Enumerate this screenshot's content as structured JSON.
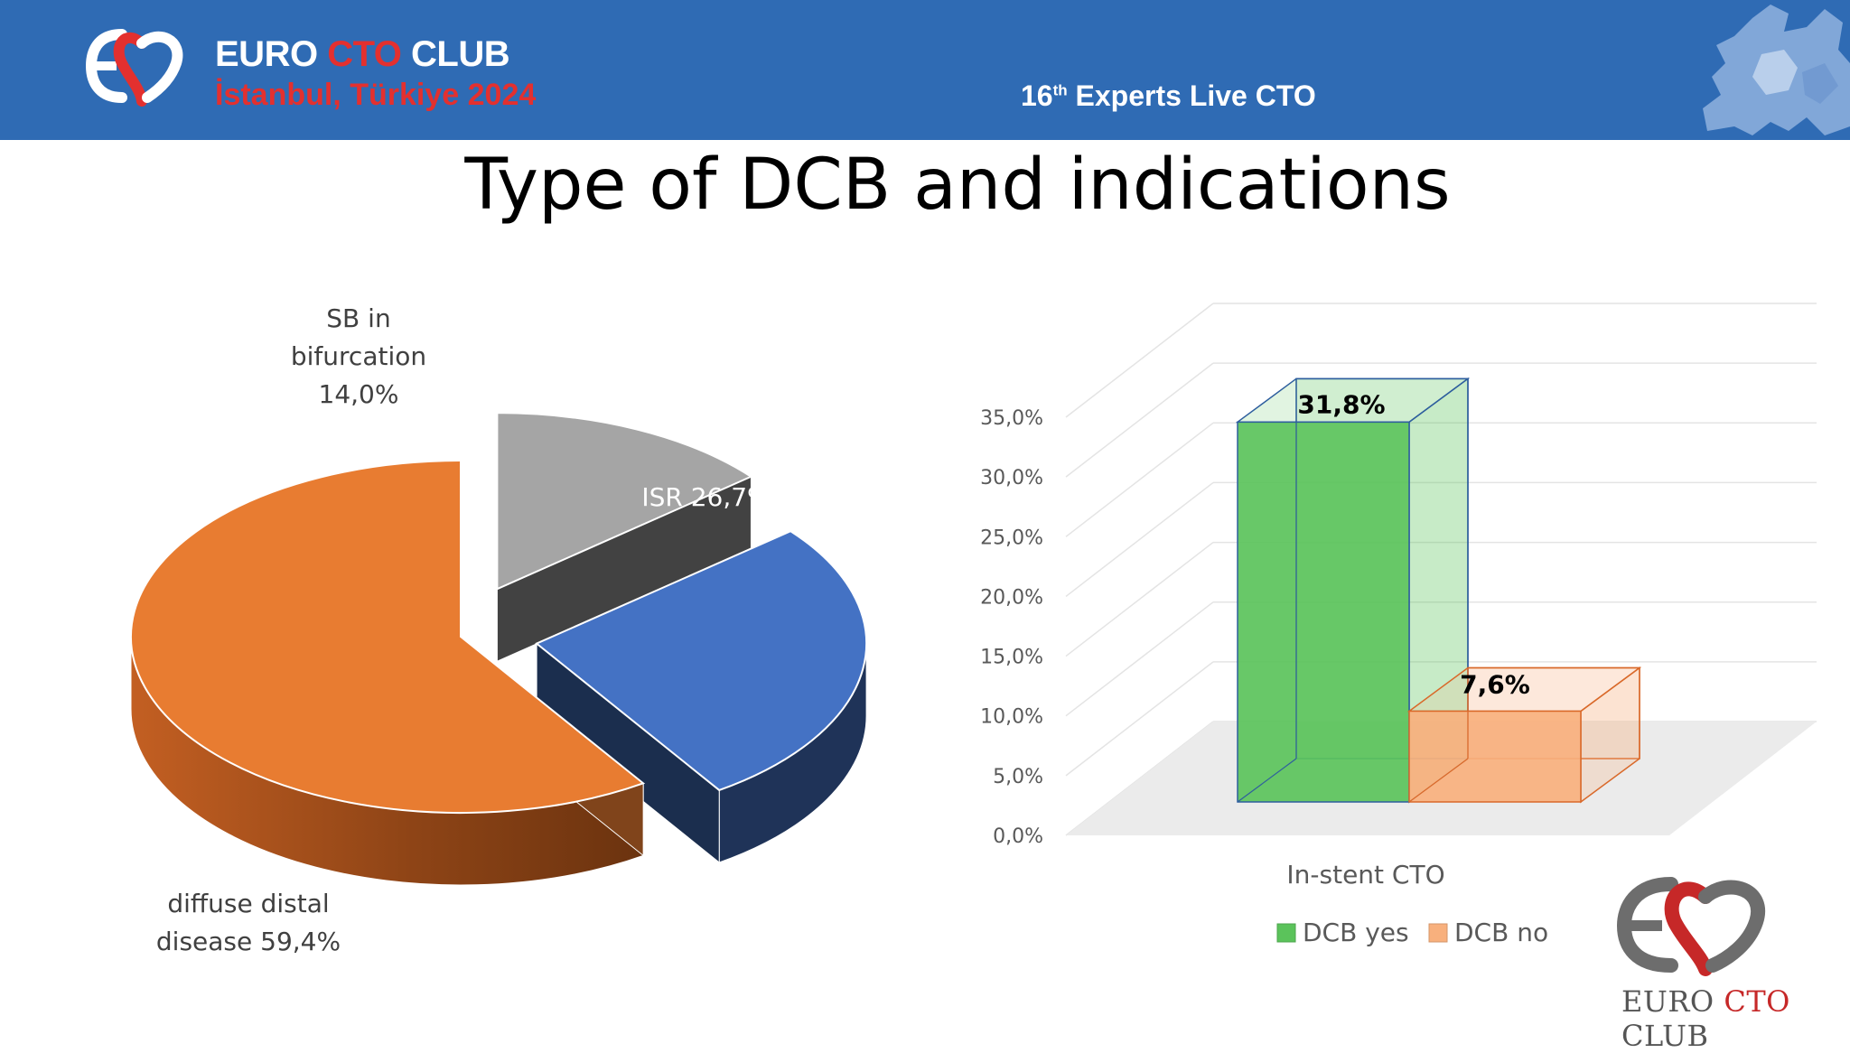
{
  "header": {
    "brand_name_part1": "EURO ",
    "brand_name_part2": "CTO",
    "brand_name_part3": " CLUB",
    "brand_sub": "İstanbul, Türkiye 2024",
    "event_prefix": "16",
    "event_sup": "th",
    "event_suffix": " Experts Live CTO"
  },
  "slide": {
    "title": "Type of DCB and indications"
  },
  "footer": {
    "logo_part1": "EURO ",
    "logo_part2": "CTO",
    "logo_part3": " CLUB"
  },
  "colors": {
    "header_bg": "#2f6bb4",
    "accent_red": "#e3302f",
    "pie_orange": "#e87c31",
    "pie_blue": "#4472c4",
    "pie_gray": "#a5a5a5",
    "bar_green": "#5bc35b",
    "bar_orange": "#f8b07d"
  },
  "chart_data": [
    {
      "type": "pie",
      "variant": "3d-exploded",
      "slices": [
        {
          "label_lines": [
            "SB in",
            "bifurcation",
            "14,0%"
          ],
          "value": 14.0,
          "color": "#a5a5a5"
        },
        {
          "label_lines": [
            "ISR 26,7%"
          ],
          "value": 26.7,
          "color": "#4472c4"
        },
        {
          "label_lines": [
            "diffuse distal",
            "disease 59,4%"
          ],
          "value": 59.4,
          "color": "#e87c31"
        }
      ]
    },
    {
      "type": "bar",
      "variant": "3d-clustered",
      "categories": [
        "In-stent CTO"
      ],
      "series": [
        {
          "name": "DCB yes",
          "values": [
            31.8
          ],
          "label": "31,8%",
          "color": "#5bc35b"
        },
        {
          "name": "DCB no",
          "values": [
            7.6
          ],
          "label": "7,6%",
          "color": "#f8b07d"
        }
      ],
      "ylim": [
        0,
        35
      ],
      "yticks": [
        "0,0%",
        "5,0%",
        "10,0%",
        "15,0%",
        "20,0%",
        "25,0%",
        "30,0%",
        "35,0%"
      ],
      "grid": true,
      "legend": "bottom"
    }
  ]
}
